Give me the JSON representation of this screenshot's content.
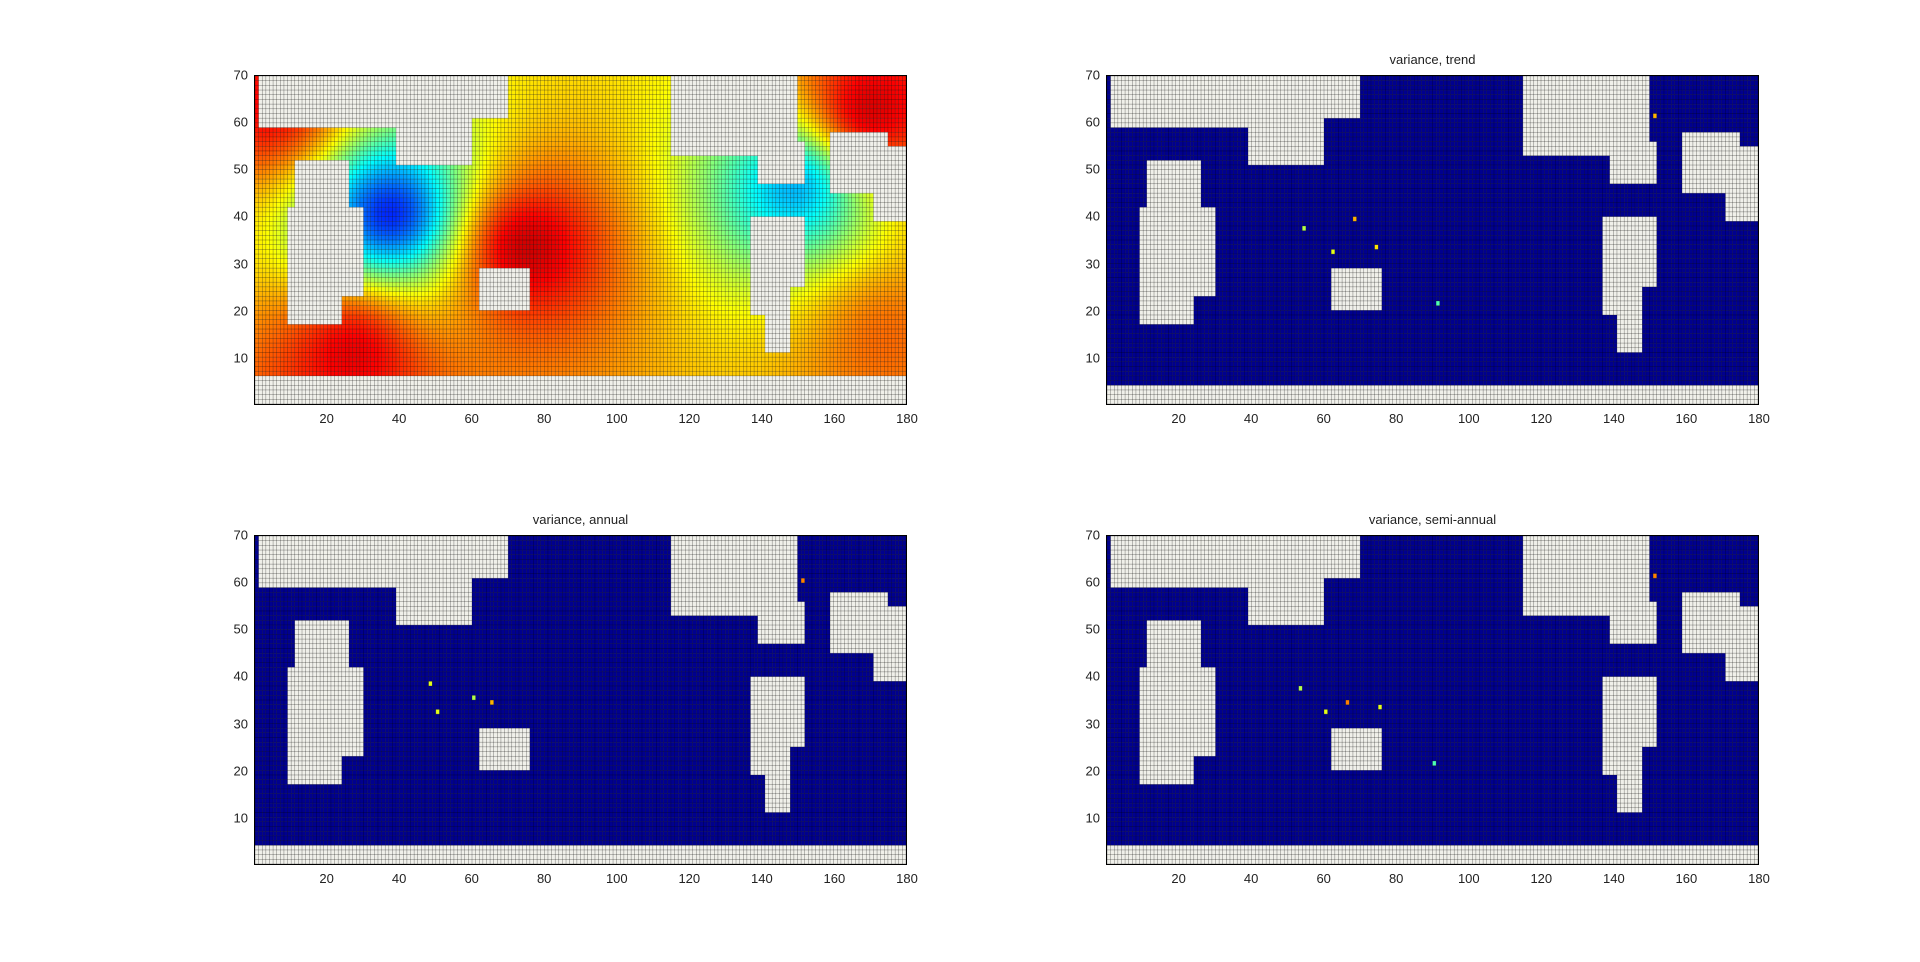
{
  "figure": {
    "colormap": "jet",
    "land_color": "#f0f0ea",
    "grid_line_color": "#000000",
    "ocean_low_color": "#00008f"
  },
  "chart_data": [
    {
      "type": "heatmap",
      "title": "",
      "xlabel": "",
      "ylabel": "",
      "xlim": [
        0,
        180
      ],
      "ylim": [
        0,
        70
      ],
      "x_ticks": [
        "20",
        "40",
        "60",
        "80",
        "100",
        "120",
        "140",
        "160",
        "180"
      ],
      "y_ticks": [
        "10",
        "20",
        "30",
        "40",
        "50",
        "60",
        "70"
      ],
      "grid": true,
      "value_range": "full colormap (blue to red); land cells masked",
      "regions": [
        {
          "name": "low",
          "center": [
            38,
            41
          ],
          "level": 0.08
        },
        {
          "name": "low",
          "center": [
            150,
            47
          ],
          "level": 0.25
        },
        {
          "name": "high",
          "center": [
            75,
            34
          ],
          "level": 0.96
        },
        {
          "name": "high",
          "center": [
            28,
            12
          ],
          "level": 0.92
        },
        {
          "name": "high",
          "center": [
            170,
            63
          ],
          "level": 0.95
        },
        {
          "name": "high",
          "center": [
            5,
            64
          ],
          "level": 0.9
        },
        {
          "name": "high",
          "center": [
            175,
            14
          ],
          "level": 0.78
        }
      ]
    },
    {
      "type": "heatmap",
      "title": "variance, trend",
      "xlabel": "",
      "ylabel": "",
      "xlim": [
        0,
        180
      ],
      "ylim": [
        0,
        70
      ],
      "x_ticks": [
        "20",
        "40",
        "60",
        "80",
        "100",
        "120",
        "140",
        "160",
        "180"
      ],
      "y_ticks": [
        "10",
        "20",
        "30",
        "40",
        "50",
        "60",
        "70"
      ],
      "grid": true,
      "value_range": "mostly near zero (dark blue) with isolated hot cells",
      "hotspots": [
        {
          "x": 55,
          "y": 38,
          "level": 0.55
        },
        {
          "x": 63,
          "y": 33,
          "level": 0.6
        },
        {
          "x": 69,
          "y": 40,
          "level": 0.7
        },
        {
          "x": 75,
          "y": 34,
          "level": 0.65
        },
        {
          "x": 92,
          "y": 22,
          "level": 0.45
        },
        {
          "x": 152,
          "y": 62,
          "level": 0.7
        }
      ]
    },
    {
      "type": "heatmap",
      "title": "variance, annual",
      "xlabel": "",
      "ylabel": "",
      "xlim": [
        0,
        180
      ],
      "ylim": [
        0,
        70
      ],
      "x_ticks": [
        "20",
        "40",
        "60",
        "80",
        "100",
        "120",
        "140",
        "160",
        "180"
      ],
      "y_ticks": [
        "10",
        "20",
        "30",
        "40",
        "50",
        "60",
        "70"
      ],
      "grid": true,
      "value_range": "mostly near zero (dark blue) with isolated hot cells",
      "hotspots": [
        {
          "x": 49,
          "y": 39,
          "level": 0.6
        },
        {
          "x": 51,
          "y": 33,
          "level": 0.6
        },
        {
          "x": 61,
          "y": 36,
          "level": 0.55
        },
        {
          "x": 66,
          "y": 35,
          "level": 0.7
        },
        {
          "x": 152,
          "y": 61,
          "level": 0.75
        }
      ]
    },
    {
      "type": "heatmap",
      "title": "variance, semi-annual",
      "xlabel": "",
      "ylabel": "",
      "xlim": [
        0,
        180
      ],
      "ylim": [
        0,
        70
      ],
      "x_ticks": [
        "20",
        "40",
        "60",
        "80",
        "100",
        "120",
        "140",
        "160",
        "180"
      ],
      "y_ticks": [
        "10",
        "20",
        "30",
        "40",
        "50",
        "60",
        "70"
      ],
      "grid": true,
      "value_range": "mostly near zero (dark blue) with isolated hot cells",
      "hotspots": [
        {
          "x": 54,
          "y": 38,
          "level": 0.55
        },
        {
          "x": 61,
          "y": 33,
          "level": 0.6
        },
        {
          "x": 67,
          "y": 35,
          "level": 0.75
        },
        {
          "x": 76,
          "y": 34,
          "level": 0.6
        },
        {
          "x": 91,
          "y": 22,
          "level": 0.45
        },
        {
          "x": 152,
          "y": 62,
          "level": 0.75
        }
      ]
    }
  ]
}
